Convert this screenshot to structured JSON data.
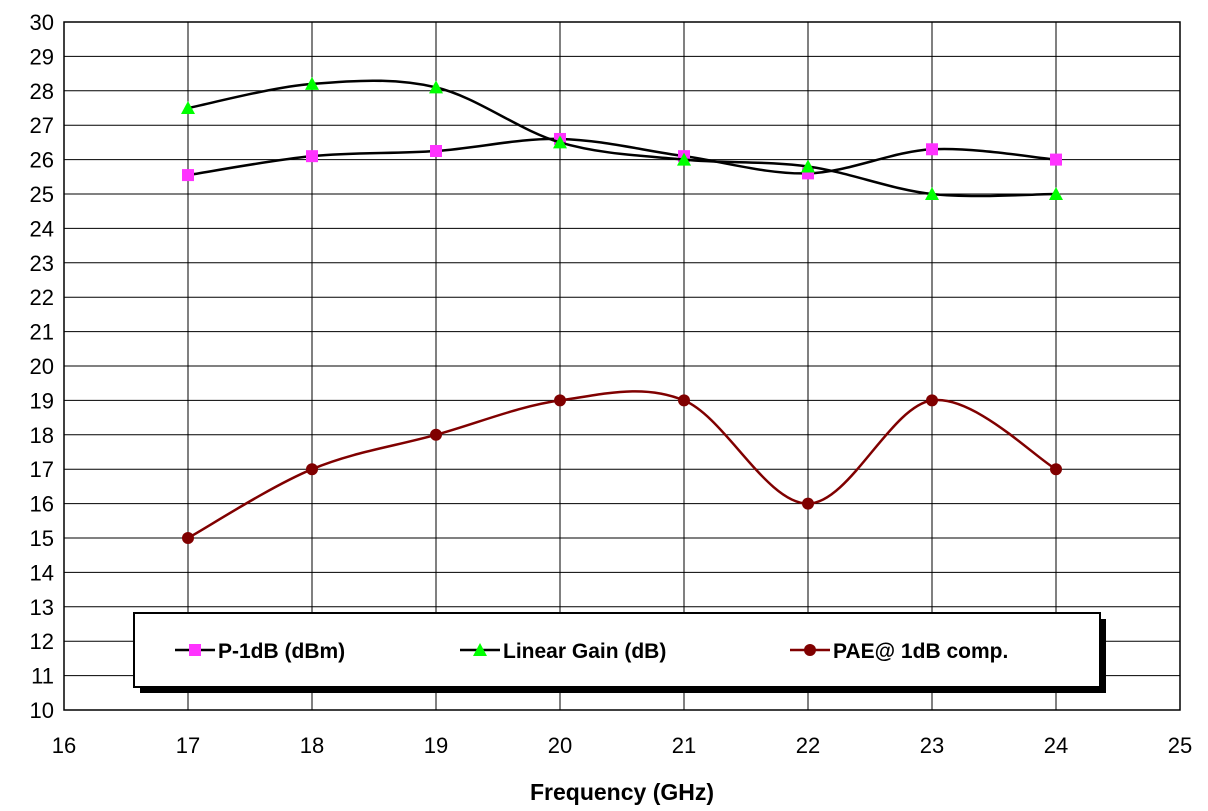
{
  "chart_data": {
    "type": "line",
    "x": [
      17,
      18,
      19,
      20,
      21,
      22,
      23,
      24
    ],
    "xlim": [
      16,
      25
    ],
    "ylim": [
      10,
      30
    ],
    "x_ticks": [
      16,
      17,
      18,
      19,
      20,
      21,
      22,
      23,
      24,
      25
    ],
    "y_ticks": [
      10,
      11,
      12,
      13,
      14,
      15,
      16,
      17,
      18,
      19,
      20,
      21,
      22,
      23,
      24,
      25,
      26,
      27,
      28,
      29,
      30
    ],
    "xlabel": "Frequency (GHz)",
    "ylabel": "",
    "title": "",
    "grid": true,
    "legend_position": "bottom-center",
    "series": [
      {
        "name": "P-1dB (dBm)",
        "values": [
          25.55,
          26.1,
          26.25,
          26.6,
          26.1,
          25.6,
          26.3,
          26.0
        ],
        "marker": "square",
        "marker_color": "#ff33ff",
        "line_color": "#000000"
      },
      {
        "name": "Linear Gain (dB)",
        "values": [
          27.5,
          28.2,
          28.1,
          26.5,
          26.0,
          25.8,
          25.0,
          25.0
        ],
        "marker": "triangle",
        "marker_color": "#00ff00",
        "line_color": "#000000"
      },
      {
        "name": "PAE@ 1dB comp.",
        "values": [
          15,
          17,
          18,
          19,
          19,
          16,
          19,
          17
        ],
        "marker": "circle",
        "marker_color": "#800000",
        "line_color": "#800000"
      }
    ]
  }
}
